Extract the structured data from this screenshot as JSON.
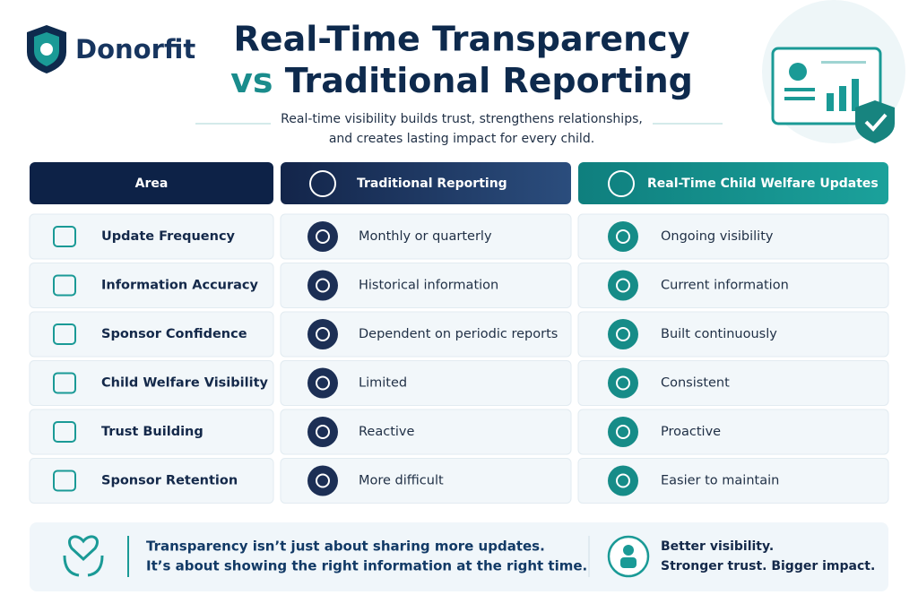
{
  "brand": "Donorfit",
  "title": {
    "line1": "Real-Time Transparency",
    "line2": [
      "vs",
      "Traditional Reporting"
    ]
  },
  "subtitle": [
    "Real-time visibility builds trust, strengthens relationships,",
    "and creates lasting impact for every child."
  ],
  "table": {
    "headers": [
      "Area",
      "Traditional Reporting",
      "Real-Time Child Welfare Updates"
    ],
    "rows": [
      [
        "Update Frequency",
        "Monthly or quarterly",
        "Ongoing visibility"
      ],
      [
        "Information Accuracy",
        "Historical information",
        "Current information"
      ],
      [
        "Sponsor Confidence",
        "Dependent on periodic reports",
        "Built continuously"
      ],
      [
        "Child Welfare Visibility",
        "Limited",
        "Consistent"
      ],
      [
        "Trust Building",
        "Reactive",
        "Proactive"
      ],
      [
        "Sponsor Retention",
        "More difficult",
        "Easier to maintain"
      ]
    ]
  },
  "footer": {
    "quote": [
      "Transparency isn’t just about sharing more updates.",
      "It’s about showing the right information at the right time."
    ],
    "tagline": [
      "Better visibility.",
      "Stronger trust. Bigger impact."
    ]
  }
}
